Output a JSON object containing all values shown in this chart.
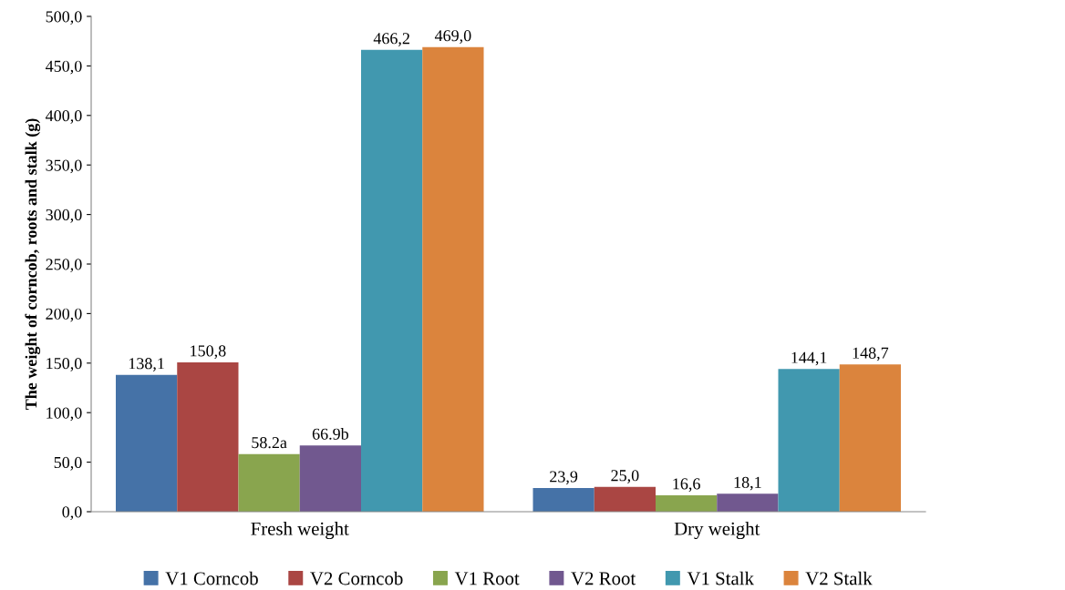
{
  "chart_data": {
    "type": "bar",
    "ylabel": "The weight of corncob, roots and stalk (g)",
    "categories": [
      "Fresh weight",
      "Dry weight"
    ],
    "series": [
      {
        "name": "V1 Corncob",
        "color": "#4572a7",
        "values": [
          138.1,
          23.9
        ],
        "value_labels": [
          "138,1",
          "23,9"
        ]
      },
      {
        "name": "V2 Corncob",
        "color": "#aa4643",
        "values": [
          150.8,
          25.0
        ],
        "value_labels": [
          "150,8",
          "25,0"
        ]
      },
      {
        "name": "V1 Root",
        "color": "#89a54e",
        "values": [
          58.2,
          16.6
        ],
        "value_labels": [
          "58.2a",
          "16,6"
        ]
      },
      {
        "name": "V2 Root",
        "color": "#71588f",
        "values": [
          66.9,
          18.1
        ],
        "value_labels": [
          "66.9b",
          "18,1"
        ]
      },
      {
        "name": "V1 Stalk",
        "color": "#4198af",
        "values": [
          466.2,
          144.1
        ],
        "value_labels": [
          "466,2",
          "144,1"
        ]
      },
      {
        "name": "V2 Stalk",
        "color": "#db843d",
        "values": [
          469.0,
          148.7
        ],
        "value_labels": [
          "469,0",
          "148,7"
        ]
      }
    ],
    "ylim": [
      0,
      500
    ],
    "yticks": [
      {
        "value": 0,
        "label": "0,0"
      },
      {
        "value": 50,
        "label": "50,0"
      },
      {
        "value": 100,
        "label": "100,0"
      },
      {
        "value": 150,
        "label": "150,0"
      },
      {
        "value": 200,
        "label": "200,0"
      },
      {
        "value": 250,
        "label": "250,0"
      },
      {
        "value": 300,
        "label": "300,0"
      },
      {
        "value": 350,
        "label": "350,0"
      },
      {
        "value": 400,
        "label": "400,0"
      },
      {
        "value": 450,
        "label": "450,0"
      },
      {
        "value": 500,
        "label": "500,0"
      }
    ],
    "grid": false,
    "legend": "bottom"
  }
}
